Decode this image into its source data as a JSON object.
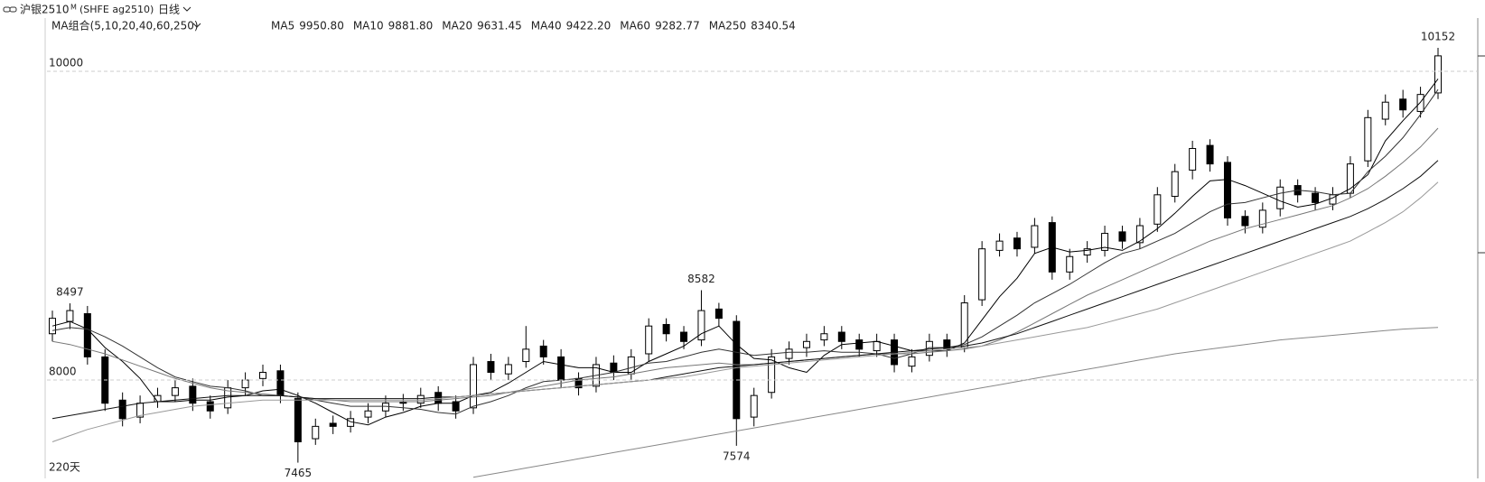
{
  "header": {
    "title": "沪银2510",
    "badge": "M",
    "code": "(SHFE  ag2510)",
    "period": "日线"
  },
  "chart_data": {
    "type": "candlestick",
    "indicator": "MA组合(5,10,20,40,60,250)",
    "period_count": "220天",
    "ylim": [
      7363,
      10228
    ],
    "yticks": [
      8000,
      10000
    ],
    "grid": true,
    "up_color": "#ffffff",
    "down_color": "#000000",
    "open": [
      8300,
      8380,
      8430,
      8150,
      7870,
      7760,
      7860,
      7900,
      7960,
      7860,
      7820,
      7950,
      8010,
      8060,
      7880,
      7620,
      7720,
      7700,
      7760,
      7800,
      7860,
      7850,
      7920,
      7860,
      7820,
      8120,
      8040,
      8120,
      8220,
      8150,
      8010,
      7960,
      8110,
      8040,
      8170,
      8360,
      8310,
      8260,
      8460,
      8380,
      7760,
      7920,
      8140,
      8210,
      8260,
      8310,
      8260,
      8190,
      8260,
      8090,
      8160,
      8260,
      8210,
      8520,
      8840,
      8920,
      8860,
      9020,
      8700,
      8810,
      8840,
      8960,
      8890,
      9010,
      9190,
      9360,
      9520,
      9410,
      9060,
      8990,
      9110,
      9260,
      9210,
      9140,
      9210,
      9420,
      9690,
      9820,
      9740,
      9860
    ],
    "high": [
      8450,
      8497,
      8480,
      8200,
      7920,
      7900,
      7950,
      8000,
      8010,
      7900,
      8000,
      8050,
      8100,
      8100,
      7920,
      7750,
      7770,
      7800,
      7850,
      7900,
      7910,
      7950,
      7960,
      7900,
      8150,
      8170,
      8150,
      8350,
      8260,
      8200,
      8050,
      8150,
      8160,
      8200,
      8400,
      8400,
      8350,
      8582,
      8500,
      8420,
      7950,
      8200,
      8250,
      8300,
      8350,
      8350,
      8300,
      8300,
      8300,
      8200,
      8300,
      8300,
      8550,
      8900,
      8950,
      8960,
      9050,
      9060,
      8850,
      8900,
      9000,
      9000,
      9050,
      9250,
      9400,
      9550,
      9560,
      9450,
      9100,
      9150,
      9300,
      9300,
      9250,
      9250,
      9450,
      9750,
      9850,
      9880,
      9900,
      10152
    ],
    "low": [
      8250,
      8330,
      8100,
      7800,
      7700,
      7720,
      7820,
      7860,
      7800,
      7750,
      7780,
      7900,
      7960,
      7850,
      7465,
      7580,
      7650,
      7660,
      7720,
      7760,
      7800,
      7820,
      7800,
      7750,
      7780,
      8000,
      8000,
      8080,
      8100,
      7950,
      7900,
      7920,
      8000,
      8000,
      8120,
      8250,
      8200,
      8220,
      8350,
      7574,
      7700,
      7880,
      8100,
      8150,
      8220,
      8200,
      8150,
      8150,
      8050,
      8050,
      8120,
      8150,
      8180,
      8480,
      8800,
      8800,
      8820,
      8650,
      8650,
      8760,
      8800,
      8850,
      8850,
      8960,
      9150,
      9300,
      9350,
      9000,
      8950,
      8950,
      9060,
      9150,
      9100,
      9100,
      9180,
      9380,
      9650,
      9700,
      9700,
      9820
    ],
    "close": [
      8400,
      8450,
      8150,
      7850,
      7750,
      7850,
      7900,
      7950,
      7850,
      7800,
      7950,
      8000,
      8050,
      7900,
      7600,
      7700,
      7700,
      7750,
      7800,
      7850,
      7850,
      7900,
      7850,
      7800,
      8100,
      8050,
      8100,
      8200,
      8150,
      8000,
      7950,
      8100,
      8050,
      8150,
      8350,
      8300,
      8250,
      8450,
      8400,
      7750,
      7900,
      8150,
      8200,
      8250,
      8300,
      8250,
      8200,
      8250,
      8100,
      8150,
      8250,
      8200,
      8500,
      8850,
      8900,
      8850,
      9000,
      8700,
      8800,
      8850,
      8950,
      8900,
      9000,
      9200,
      9350,
      9500,
      9400,
      9050,
      9000,
      9100,
      9250,
      9200,
      9150,
      9200,
      9400,
      9700,
      9800,
      9750,
      9850,
      10100
    ],
    "series": [
      {
        "name": "MA5",
        "label": "9950.80",
        "color": "#000000",
        "values": [
          8350,
          8380,
          8330,
          8210,
          8120,
          8010,
          7860,
          7860,
          7870,
          7870,
          7890,
          7900,
          7930,
          7940,
          7900,
          7850,
          7790,
          7730,
          7710,
          7760,
          7790,
          7830,
          7850,
          7850,
          7900,
          7920,
          7980,
          8050,
          8120,
          8100,
          8080,
          8080,
          8050,
          8050,
          8120,
          8170,
          8220,
          8300,
          8350,
          8230,
          8140,
          8130,
          8080,
          8050,
          8160,
          8230,
          8240,
          8250,
          8220,
          8190,
          8190,
          8190,
          8240,
          8390,
          8540,
          8660,
          8820,
          8860,
          8830,
          8840,
          8860,
          8840,
          8900,
          8980,
          9080,
          9190,
          9290,
          9300,
          9260,
          9210,
          9160,
          9120,
          9140,
          9180,
          9240,
          9330,
          9550,
          9680,
          9800,
          9950.8
        ]
      },
      {
        "name": "MA10",
        "label": "9881.80",
        "color": "#333333",
        "values": [
          8320,
          8340,
          8330,
          8280,
          8220,
          8150,
          8080,
          8020,
          7990,
          7960,
          7950,
          7930,
          7900,
          7900,
          7890,
          7870,
          7850,
          7830,
          7830,
          7830,
          7820,
          7810,
          7790,
          7780,
          7830,
          7860,
          7900,
          7950,
          7990,
          8000,
          8010,
          8030,
          8050,
          8080,
          8110,
          8120,
          8150,
          8180,
          8200,
          8180,
          8160,
          8170,
          8180,
          8180,
          8190,
          8180,
          8180,
          8170,
          8140,
          8170,
          8210,
          8210,
          8230,
          8280,
          8350,
          8420,
          8500,
          8560,
          8620,
          8690,
          8760,
          8820,
          8850,
          8900,
          8950,
          9020,
          9090,
          9140,
          9150,
          9180,
          9210,
          9230,
          9220,
          9200,
          9210,
          9350,
          9450,
          9570,
          9720,
          9881.8
        ]
      },
      {
        "name": "MA20",
        "label": "9631.45",
        "color": "#777777",
        "values": [
          8250,
          8230,
          8200,
          8170,
          8130,
          8090,
          8050,
          8010,
          7980,
          7950,
          7930,
          7920,
          7910,
          7900,
          7890,
          7880,
          7870,
          7860,
          7860,
          7860,
          7860,
          7860,
          7870,
          7880,
          7890,
          7900,
          7920,
          7940,
          7960,
          7980,
          8000,
          8010,
          8020,
          8040,
          8060,
          8080,
          8090,
          8100,
          8110,
          8100,
          8100,
          8110,
          8120,
          8130,
          8140,
          8150,
          8160,
          8170,
          8170,
          8170,
          8180,
          8190,
          8200,
          8220,
          8260,
          8310,
          8370,
          8430,
          8490,
          8550,
          8600,
          8650,
          8700,
          8750,
          8800,
          8850,
          8900,
          8940,
          8980,
          9010,
          9040,
          9070,
          9100,
          9130,
          9180,
          9240,
          9320,
          9410,
          9510,
          9631.45
        ]
      },
      {
        "name": "MA40",
        "label": "9422.20",
        "color": "#111111",
        "values": [
          7750,
          7770,
          7790,
          7810,
          7830,
          7850,
          7860,
          7870,
          7880,
          7890,
          7900,
          7900,
          7900,
          7900,
          7890,
          7880,
          7880,
          7880,
          7880,
          7880,
          7880,
          7880,
          7890,
          7890,
          7900,
          7910,
          7920,
          7930,
          7940,
          7950,
          7960,
          7970,
          7980,
          7990,
          8000,
          8020,
          8040,
          8060,
          8080,
          8090,
          8100,
          8110,
          8120,
          8130,
          8140,
          8150,
          8160,
          8170,
          8180,
          8190,
          8200,
          8210,
          8220,
          8240,
          8270,
          8300,
          8340,
          8380,
          8420,
          8460,
          8500,
          8540,
          8580,
          8620,
          8660,
          8700,
          8740,
          8780,
          8820,
          8860,
          8900,
          8940,
          8980,
          9020,
          9060,
          9110,
          9170,
          9240,
          9320,
          9422.2
        ]
      },
      {
        "name": "MA60",
        "label": "9282.77",
        "color": "#999999",
        "values": [
          7600,
          7640,
          7680,
          7710,
          7740,
          7770,
          7790,
          7810,
          7830,
          7840,
          7850,
          7860,
          7870,
          7870,
          7870,
          7870,
          7870,
          7870,
          7870,
          7870,
          7870,
          7870,
          7880,
          7890,
          7900,
          7910,
          7920,
          7930,
          7940,
          7950,
          7960,
          7970,
          7980,
          7990,
          8000,
          8010,
          8020,
          8040,
          8060,
          8080,
          8090,
          8100,
          8110,
          8120,
          8130,
          8140,
          8150,
          8160,
          8170,
          8180,
          8190,
          8200,
          8210,
          8220,
          8240,
          8260,
          8280,
          8300,
          8320,
          8340,
          8370,
          8400,
          8430,
          8460,
          8500,
          8540,
          8580,
          8620,
          8660,
          8700,
          8740,
          8780,
          8820,
          8860,
          8900,
          8960,
          9020,
          9090,
          9180,
          9282.77
        ]
      },
      {
        "name": "MA250",
        "label": "8340.54",
        "color": "#888888",
        "values": [
          null,
          null,
          null,
          null,
          null,
          null,
          null,
          null,
          null,
          null,
          null,
          null,
          null,
          null,
          null,
          null,
          null,
          null,
          null,
          null,
          null,
          null,
          null,
          null,
          7370,
          7390,
          7410,
          7430,
          7450,
          7470,
          7490,
          7510,
          7530,
          7550,
          7570,
          7590,
          7610,
          7630,
          7650,
          7670,
          7690,
          7710,
          7730,
          7750,
          7770,
          7790,
          7810,
          7830,
          7850,
          7870,
          7890,
          7910,
          7930,
          7950,
          7970,
          7990,
          8010,
          8030,
          8050,
          8070,
          8090,
          8110,
          8130,
          8150,
          8170,
          8185,
          8200,
          8215,
          8230,
          8245,
          8260,
          8270,
          8280,
          8290,
          8300,
          8310,
          8320,
          8330,
          8336,
          8340.54
        ]
      }
    ]
  }
}
